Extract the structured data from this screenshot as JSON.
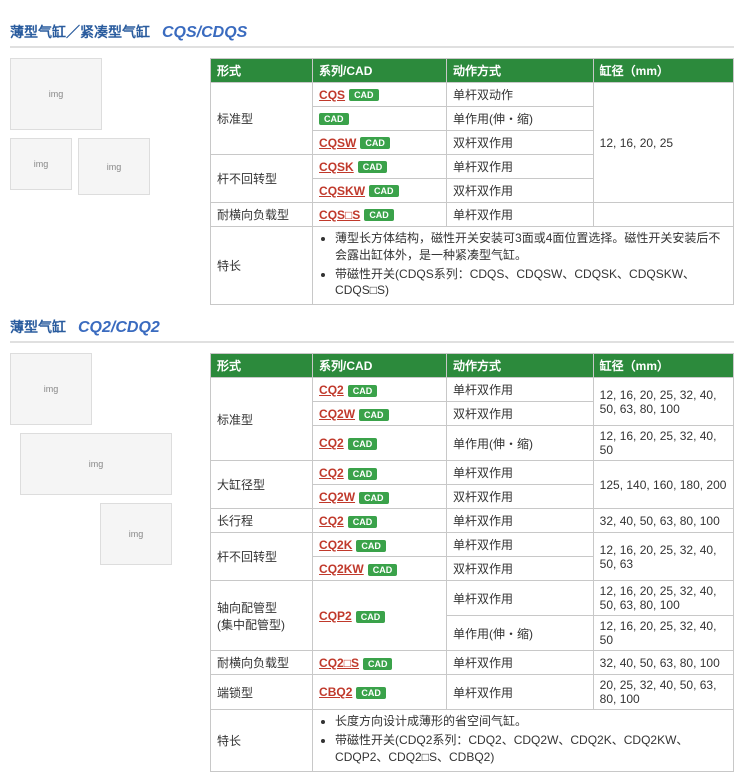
{
  "section1": {
    "title_jp": "薄型气缸／紧凑型气缸",
    "title_code": "CQS/CDQS",
    "headers": [
      "形式",
      "系列/CAD",
      "动作方式",
      "缸径（mm）"
    ],
    "cad_label": "CAD",
    "rows": [
      {
        "form": "标准型",
        "form_rowspan": 3,
        "series": "CQS",
        "action": "单杆双动作",
        "bore": "12, 16, 20, 25",
        "bore_rowspan": 5
      },
      {
        "series": "",
        "action": "单作用(伸・缩)"
      },
      {
        "series": "CQSW",
        "action": "双杆双作用"
      },
      {
        "form": "杆不回转型",
        "form_rowspan": 2,
        "series": "CQSK",
        "action": "单杆双作用"
      },
      {
        "series": "CQSKW",
        "action": "双杆双作用"
      },
      {
        "form": "耐横向负载型",
        "form_rowspan": 1,
        "series": "CQS□S",
        "action": "单杆双作用",
        "bore": ""
      }
    ],
    "feature_label": "特长",
    "features": [
      "薄型长方体结构，磁性开关安装可3面或4面位置选择。磁性开关安装后不会露出缸体外，是一种紧凑型气缸。",
      "带磁性开关(CDQS系列：CDQS、CDQSW、CDQSK、CDQSKW、CDQS□S)"
    ]
  },
  "section2": {
    "title_jp": "薄型气缸",
    "title_code": "CQ2/CDQ2",
    "headers": [
      "形式",
      "系列/CAD",
      "动作方式",
      "缸径（mm）"
    ],
    "cad_label": "CAD",
    "rows": [
      {
        "form": "标准型",
        "form_rowspan": 3,
        "series": "CQ2",
        "action": "单杆双作用",
        "bore": "12, 16, 20, 25, 32, 40, 50, 63, 80, 100",
        "bore_rowspan": 2
      },
      {
        "series": "CQ2W",
        "action": "双杆双作用"
      },
      {
        "series": "CQ2",
        "action": "单作用(伸・缩)",
        "bore": "12, 16, 20, 25, 32, 40, 50"
      },
      {
        "form": "大缸径型",
        "form_rowspan": 2,
        "series": "CQ2",
        "action": "单杆双作用",
        "bore": "125, 140, 160, 180, 200",
        "bore_rowspan": 2
      },
      {
        "series": "CQ2W",
        "action": "双杆双作用"
      },
      {
        "form": "长行程",
        "series": "CQ2",
        "action": "单杆双作用",
        "bore": "32, 40, 50, 63, 80, 100"
      },
      {
        "form": "杆不回转型",
        "form_rowspan": 2,
        "series": "CQ2K",
        "action": "单杆双作用",
        "bore": "12, 16, 20, 25, 32, 40, 50, 63",
        "bore_rowspan": 2
      },
      {
        "series": "CQ2KW",
        "action": "双杆双作用"
      },
      {
        "form": "轴向配管型\n(集中配管型)",
        "form_rowspan": 2,
        "series": "CQP2",
        "series_rowspan": 2,
        "action": "单杆双作用",
        "bore": "12, 16, 20, 25, 32, 40, 50, 63, 80, 100"
      },
      {
        "action": "单作用(伸・缩)",
        "bore": "12, 16, 20, 25, 32, 40, 50"
      },
      {
        "form": "耐横向负载型",
        "series": "CQ2□S",
        "action": "单杆双作用",
        "bore": "32, 40, 50, 63, 80, 100"
      },
      {
        "form": "端锁型",
        "series": "CBQ2",
        "action": "单杆双作用",
        "bore": "20, 25, 32, 40, 50, 63, 80, 100"
      }
    ],
    "feature_label": "特长",
    "features": [
      "长度方向设计成薄形的省空间气缸。",
      "带磁性开关(CDQ2系列：CDQ2、CDQ2W、CDQ2K、CDQ2KW、CDQP2、CDQ2□S、CDBQ2)"
    ]
  },
  "col_widths": {
    "c1": "90px",
    "c2": "110px",
    "c3": "120px",
    "c4": "120px"
  }
}
